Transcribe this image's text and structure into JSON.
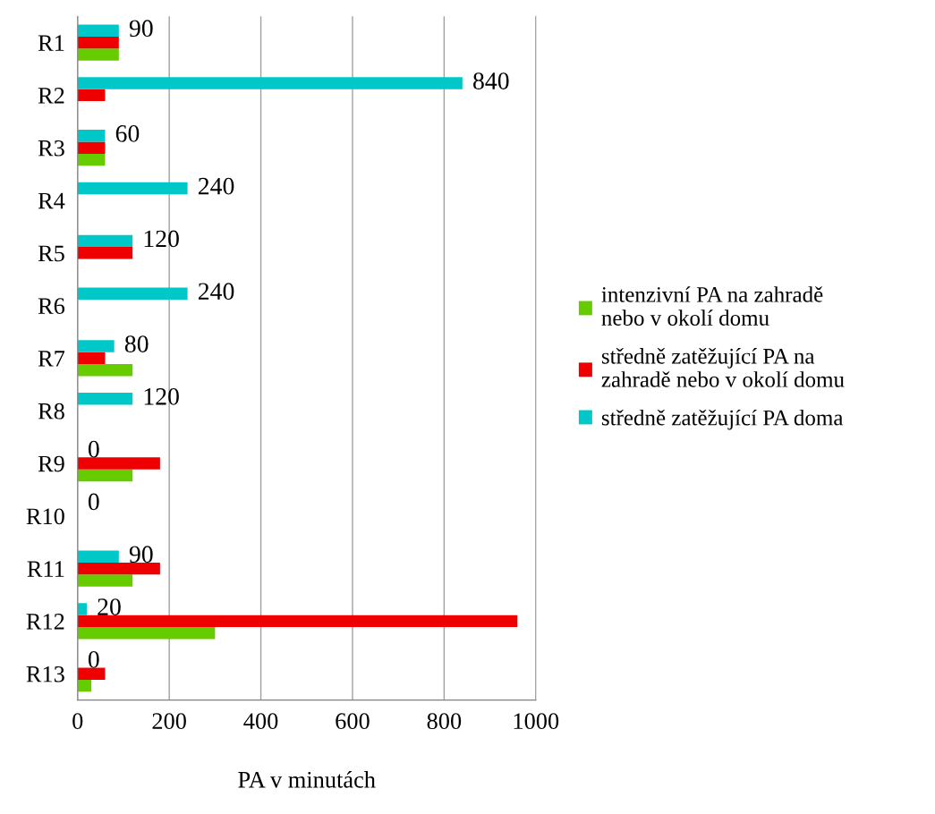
{
  "chart_data": {
    "type": "bar",
    "orientation": "horizontal",
    "xlabel": "PA v minutách",
    "categories": [
      "R1",
      "R2",
      "R3",
      "R4",
      "R5",
      "R6",
      "R7",
      "R8",
      "R9",
      "R10",
      "R11",
      "R12",
      "R13"
    ],
    "series": [
      {
        "name": "intenzivní PA na zahradě\nnebo v okolí domu",
        "color": "#66cc00",
        "values": [
          90,
          0,
          60,
          0,
          0,
          0,
          120,
          0,
          120,
          0,
          120,
          300,
          30
        ]
      },
      {
        "name": "středně zatěžující PA na\nzahradě nebo v okolí domu",
        "color": "#ee0000",
        "values": [
          90,
          60,
          60,
          0,
          120,
          0,
          60,
          0,
          180,
          0,
          180,
          960,
          60
        ]
      },
      {
        "name": "středně zatěžující PA doma",
        "color": "#00c8c8",
        "values": [
          90,
          840,
          60,
          240,
          120,
          240,
          80,
          120,
          0,
          0,
          90,
          20,
          0
        ],
        "value_labels": [
          "90",
          "840",
          "60",
          "240",
          "120",
          "240",
          "80",
          "120",
          "0",
          "0",
          "90",
          "20",
          "0"
        ]
      }
    ],
    "xlim": [
      0,
      1000
    ],
    "xticks": [
      0,
      200,
      400,
      600,
      800,
      1000
    ],
    "grid": "x",
    "legend": "right"
  }
}
